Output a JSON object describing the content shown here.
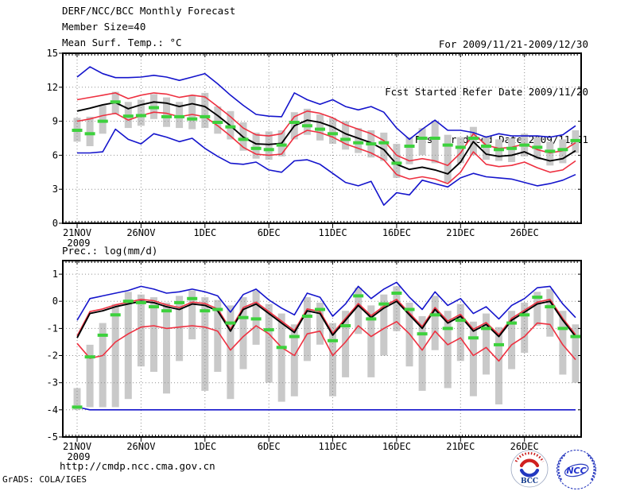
{
  "header": {
    "title": "DERF/NCC/BCC Monthly Forecast",
    "member_size": "Member Size=40",
    "for_range": "For 2009/11/21-2009/12/30",
    "fcst_started": "Fcst Started Refer Date 2009/11/20",
    "fcst_produced": "Fcst Produced Date 2009/11/21"
  },
  "footer": {
    "url": "http://cmdp.ncc.cma.gov.cn",
    "grads_credit": "GrADS: COLA/IGES"
  },
  "logos": {
    "bcc_label": "BCC",
    "ncc_label": "NCC"
  },
  "colors": {
    "envelope_blue": "#1414cc",
    "quartile_red": "#ee3040",
    "mean_black": "#000000",
    "marker_green": "#3dd13d",
    "bar_gray": "#c9c9c9",
    "grid_gray": "#909090"
  },
  "chart_data": [
    {
      "type": "line",
      "title": "Mean Surf. Temp.: °C",
      "x_tick_labels": [
        "21NOV",
        "26NOV",
        "1DEC",
        "6DEC",
        "11DEC",
        "16DEC",
        "21DEC",
        "26DEC"
      ],
      "x_tick_days": [
        0,
        5,
        10,
        15,
        20,
        25,
        30,
        35
      ],
      "x_sublabel_year": "2009",
      "n_days": 40,
      "ylim": [
        0,
        15
      ],
      "yticks": [
        0,
        3,
        6,
        9,
        12,
        15
      ],
      "grid": "dotted",
      "legend": "none",
      "series": [
        {
          "name": "ensemble-max",
          "color": "#1414cc",
          "values": [
            12.9,
            13.8,
            13.2,
            12.85,
            12.85,
            12.9,
            13.05,
            12.9,
            12.6,
            12.9,
            13.2,
            12.3,
            11.3,
            10.4,
            9.6,
            9.45,
            9.4,
            11.5,
            10.9,
            10.5,
            10.9,
            10.3,
            10.0,
            10.3,
            9.8,
            8.4,
            7.4,
            8.3,
            9.1,
            8.2,
            8.2,
            8.0,
            7.6,
            7.9,
            7.7,
            7.7,
            7.7,
            7.6,
            7.8,
            8.6
          ]
        },
        {
          "name": "upper-quartile",
          "color": "#ee3040",
          "values": [
            10.9,
            11.1,
            11.3,
            11.5,
            11.0,
            11.3,
            11.5,
            11.4,
            11.1,
            11.3,
            11.15,
            10.3,
            9.4,
            8.4,
            7.8,
            7.7,
            7.9,
            9.4,
            9.9,
            9.7,
            9.3,
            8.7,
            8.3,
            7.9,
            7.3,
            6.0,
            5.5,
            5.7,
            5.5,
            5.1,
            6.2,
            7.9,
            6.9,
            6.6,
            6.7,
            7.0,
            6.5,
            6.2,
            6.4,
            7.1
          ]
        },
        {
          "name": "ensemble-mean",
          "color": "#000000",
          "values": [
            9.9,
            10.15,
            10.45,
            10.65,
            10.1,
            10.45,
            10.7,
            10.6,
            10.3,
            10.55,
            10.3,
            9.5,
            8.6,
            7.6,
            7.0,
            6.95,
            7.05,
            8.6,
            9.1,
            8.9,
            8.5,
            7.9,
            7.5,
            7.1,
            6.5,
            5.2,
            4.75,
            4.95,
            4.7,
            4.35,
            5.4,
            7.2,
            6.1,
            5.9,
            6.0,
            6.3,
            5.8,
            5.5,
            5.7,
            6.4
          ]
        },
        {
          "name": "lower-quartile",
          "color": "#ee3040",
          "values": [
            9.0,
            9.2,
            9.5,
            9.7,
            9.1,
            9.5,
            9.8,
            9.7,
            9.4,
            9.6,
            9.4,
            8.6,
            7.7,
            6.7,
            6.1,
            6.0,
            6.1,
            7.6,
            8.2,
            8.0,
            7.6,
            7.0,
            6.6,
            6.2,
            5.6,
            4.3,
            3.9,
            4.1,
            3.9,
            3.5,
            4.5,
            6.3,
            5.2,
            5.0,
            5.1,
            5.4,
            4.9,
            4.5,
            4.7,
            5.5
          ]
        },
        {
          "name": "ensemble-min",
          "color": "#1414cc",
          "values": [
            6.2,
            6.2,
            6.3,
            8.3,
            7.4,
            7.0,
            7.9,
            7.6,
            7.2,
            7.5,
            6.6,
            5.9,
            5.3,
            5.2,
            5.4,
            4.7,
            4.5,
            5.5,
            5.6,
            5.2,
            4.4,
            3.6,
            3.3,
            3.7,
            1.6,
            2.7,
            2.5,
            3.8,
            3.5,
            3.2,
            4.0,
            4.4,
            4.1,
            4.0,
            3.9,
            3.6,
            3.3,
            3.5,
            3.8,
            4.3
          ]
        }
      ],
      "range_bars": {
        "name": "member-spread-bar",
        "color": "#c9c9c9",
        "high": [
          9.3,
          9.4,
          10.4,
          11.6,
          10.7,
          10.9,
          11.4,
          11.1,
          10.7,
          11.3,
          11.5,
          10.3,
          9.9,
          8.9,
          8.0,
          8.1,
          8.2,
          9.8,
          10.1,
          9.6,
          9.3,
          9.0,
          8.4,
          8.2,
          8.0,
          7.0,
          7.6,
          8.4,
          9.0,
          7.8,
          7.6,
          8.5,
          7.7,
          7.4,
          7.5,
          7.9,
          7.6,
          7.2,
          7.4,
          8.2
        ],
        "low": [
          7.2,
          6.8,
          7.9,
          9.6,
          8.4,
          8.6,
          9.2,
          8.5,
          8.4,
          8.3,
          8.4,
          7.9,
          7.4,
          6.4,
          5.7,
          5.6,
          5.9,
          7.4,
          7.8,
          7.3,
          7.0,
          6.5,
          6.2,
          5.8,
          5.5,
          4.0,
          5.2,
          6.0,
          5.3,
          3.6,
          5.3,
          6.0,
          5.6,
          5.5,
          5.4,
          5.9,
          5.6,
          5.1,
          5.3,
          6.2
        ]
      },
      "markers": {
        "name": "daily-green-marker",
        "color": "#3dd13d",
        "values": [
          8.2,
          7.9,
          9.0,
          10.7,
          9.45,
          9.5,
          10.2,
          9.4,
          9.4,
          9.2,
          9.4,
          8.9,
          8.5,
          7.4,
          6.6,
          6.5,
          6.9,
          8.9,
          8.6,
          8.3,
          7.9,
          7.4,
          7.1,
          7.0,
          7.1,
          5.3,
          6.8,
          7.5,
          7.5,
          6.9,
          6.7,
          7.5,
          6.8,
          6.5,
          6.6,
          6.9,
          6.7,
          6.35,
          6.5,
          7.3
        ]
      }
    },
    {
      "type": "line",
      "title": "Prec.: log(mm/d)",
      "x_tick_labels": [
        "21NOV",
        "26NOV",
        "1DEC",
        "6DEC",
        "11DEC",
        "16DEC",
        "21DEC",
        "26DEC"
      ],
      "x_tick_days": [
        0,
        5,
        10,
        15,
        20,
        25,
        30,
        35
      ],
      "x_sublabel_year": "2009",
      "n_days": 40,
      "ylim": [
        -5,
        1.5
      ],
      "yticks": [
        -5,
        -4,
        -3,
        -2,
        -1,
        0,
        1
      ],
      "grid": "dotted",
      "legend": "none",
      "series": [
        {
          "name": "ensemble-max",
          "color": "#1414cc",
          "values": [
            -0.7,
            0.1,
            0.2,
            0.3,
            0.4,
            0.55,
            0.45,
            0.3,
            0.35,
            0.45,
            0.35,
            0.2,
            -0.4,
            0.25,
            0.45,
            0.05,
            -0.25,
            -0.5,
            0.3,
            0.15,
            -0.55,
            -0.1,
            0.55,
            0.1,
            0.45,
            0.7,
            0.15,
            -0.3,
            0.35,
            -0.15,
            0.1,
            -0.45,
            -0.2,
            -0.65,
            -0.15,
            0.1,
            0.5,
            0.55,
            -0.1,
            -0.6
          ]
        },
        {
          "name": "upper-quartile",
          "color": "#ee3040",
          "values": [
            -1.28,
            -0.38,
            -0.28,
            -0.13,
            -0.03,
            0.07,
            0.02,
            -0.13,
            -0.23,
            -0.03,
            -0.08,
            -0.28,
            -1.03,
            -0.23,
            -0.03,
            -0.38,
            -0.73,
            -1.08,
            -0.28,
            -0.38,
            -1.18,
            -0.63,
            -0.08,
            -0.53,
            -0.18,
            0.07,
            -0.43,
            -0.93,
            -0.23,
            -0.73,
            -0.48,
            -1.03,
            -0.78,
            -1.23,
            -0.63,
            -0.33,
            -0.03,
            0.07,
            -0.63,
            -1.23
          ]
        },
        {
          "name": "ensemble-mean",
          "color": "#000000",
          "values": [
            -1.35,
            -0.45,
            -0.35,
            -0.2,
            -0.1,
            0.0,
            -0.05,
            -0.2,
            -0.3,
            -0.1,
            -0.15,
            -0.35,
            -1.1,
            -0.3,
            -0.1,
            -0.45,
            -0.8,
            -1.15,
            -0.35,
            -0.45,
            -1.25,
            -0.7,
            -0.15,
            -0.6,
            -0.25,
            0.0,
            -0.5,
            -1.0,
            -0.3,
            -0.8,
            -0.55,
            -1.1,
            -0.85,
            -1.3,
            -0.7,
            -0.4,
            -0.1,
            0.0,
            -0.7,
            -1.3
          ]
        },
        {
          "name": "lower-quartile",
          "color": "#ee3040",
          "values": [
            -1.55,
            -2.1,
            -2.0,
            -1.5,
            -1.2,
            -0.95,
            -0.9,
            -1.0,
            -0.95,
            -0.9,
            -0.95,
            -1.1,
            -1.8,
            -1.3,
            -0.9,
            -1.2,
            -1.7,
            -2.0,
            -1.2,
            -1.1,
            -2.0,
            -1.5,
            -0.9,
            -1.3,
            -1.0,
            -0.75,
            -1.2,
            -1.8,
            -1.1,
            -1.6,
            -1.35,
            -2.0,
            -1.7,
            -2.2,
            -1.6,
            -1.3,
            -0.8,
            -0.85,
            -1.6,
            -2.15
          ]
        },
        {
          "name": "ensemble-min",
          "color": "#1414cc",
          "values": [
            -3.9,
            -4.0,
            -4.0,
            -4.0,
            -4.0,
            -4.0,
            -4.0,
            -4.0,
            -4.0,
            -4.0,
            -4.0,
            -4.0,
            -4.0,
            -4.0,
            -4.0,
            -4.0,
            -4.0,
            -4.0,
            -4.0,
            -4.0,
            -4.0,
            -4.0,
            -4.0,
            -4.0,
            -4.0,
            -4.0,
            -4.0,
            -4.0,
            -4.0,
            -4.0,
            -4.0,
            -4.0,
            -4.0,
            -4.0,
            -4.0,
            -4.0,
            -4.0,
            -4.0,
            -4.0,
            -4.0
          ]
        }
      ],
      "range_bars": {
        "name": "member-spread-bar",
        "color": "#c9c9c9",
        "high": [
          -3.2,
          -1.6,
          -0.8,
          -0.1,
          0.35,
          0.25,
          0.15,
          -0.05,
          0.2,
          0.4,
          0.15,
          0.05,
          -0.15,
          0.15,
          0.4,
          -0.1,
          -0.45,
          -0.85,
          0.15,
          -0.05,
          -0.8,
          -0.35,
          0.5,
          -0.15,
          0.25,
          0.55,
          -0.05,
          -0.55,
          0.2,
          -0.35,
          -0.1,
          -0.75,
          -0.45,
          -0.95,
          -0.35,
          -0.05,
          0.35,
          0.45,
          -0.35,
          -0.85
        ],
        "low": [
          -4.0,
          -3.9,
          -3.9,
          -3.9,
          -3.6,
          -2.4,
          -2.6,
          -3.4,
          -2.2,
          -1.4,
          -3.3,
          -2.6,
          -3.6,
          -2.5,
          -1.6,
          -3.0,
          -3.7,
          -3.5,
          -2.2,
          -1.6,
          -3.5,
          -2.8,
          -1.2,
          -2.8,
          -2.0,
          -1.1,
          -2.4,
          -3.3,
          -1.8,
          -3.2,
          -2.2,
          -3.5,
          -2.7,
          -3.8,
          -2.5,
          -1.9,
          -0.9,
          -1.3,
          -2.7,
          -3.0
        ]
      },
      "markers": {
        "name": "daily-green-marker",
        "color": "#3dd13d",
        "values": [
          -3.9,
          -2.05,
          -1.25,
          -0.5,
          0.0,
          -0.05,
          -0.2,
          -0.35,
          -0.05,
          0.1,
          -0.35,
          -0.3,
          -0.8,
          -0.6,
          -0.65,
          -1.05,
          -1.7,
          -1.3,
          -0.55,
          -0.3,
          -1.45,
          -0.9,
          0.2,
          -0.65,
          -0.1,
          0.3,
          -0.3,
          -1.2,
          -0.5,
          -1.0,
          -0.7,
          -1.35,
          -1.0,
          -1.6,
          -0.8,
          -0.5,
          0.15,
          -0.2,
          -1.0,
          -1.3
        ]
      }
    }
  ]
}
